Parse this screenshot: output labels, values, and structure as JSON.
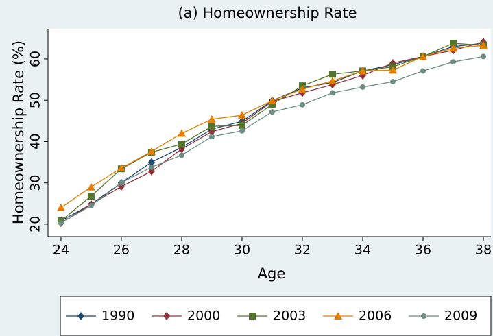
{
  "chart_data": {
    "type": "line",
    "title": "(a) Homeownership Rate",
    "x_label": "Age",
    "y_label": "Homeownership Rate (%)",
    "x": [
      24,
      25,
      26,
      27,
      28,
      29,
      30,
      31,
      32,
      33,
      34,
      35,
      36,
      37,
      38
    ],
    "xlim": [
      23.57,
      38.25
    ],
    "xticks": [
      24,
      26,
      28,
      30,
      32,
      34,
      36,
      38
    ],
    "ylim": [
      17,
      67.3
    ],
    "yticks": [
      20,
      30,
      40,
      50,
      60
    ],
    "series": [
      {
        "name": "1990",
        "color": "#1a476f",
        "marker": "diamond",
        "values": [
          20.8,
          24.8,
          30,
          35,
          38.6,
          43,
          44.9,
          49.9,
          53,
          54.3,
          57.1,
          58.6,
          60.6,
          63,
          63.8
        ]
      },
      {
        "name": "2000",
        "color": "#90353b",
        "marker": "diamond",
        "values": [
          20.3,
          24.8,
          29.1,
          32.8,
          38.2,
          42.4,
          44.4,
          49.7,
          51.8,
          53.8,
          56,
          59,
          60.6,
          62.1,
          64.1
        ]
      },
      {
        "name": "2003",
        "color": "#55752f",
        "marker": "square",
        "values": [
          20.8,
          26.8,
          33.4,
          37.4,
          39.4,
          43.7,
          43.9,
          49,
          53.5,
          56.3,
          57.1,
          58.1,
          60.6,
          63.8,
          63.3
        ]
      },
      {
        "name": "2006",
        "color": "#e37e00",
        "marker": "triangle",
        "values": [
          24,
          29,
          33.6,
          37.6,
          42,
          45.4,
          46.4,
          49.9,
          52.7,
          54.7,
          57.1,
          57.3,
          60.6,
          62.6,
          63.3
        ]
      },
      {
        "name": "2009",
        "color": "#6e8e84",
        "marker": "circle",
        "values": [
          20.3,
          24.5,
          30,
          33.8,
          36.7,
          41.2,
          42.6,
          47.2,
          48.9,
          51.8,
          53.2,
          54.5,
          57.1,
          59.3,
          60.6
        ]
      }
    ]
  }
}
